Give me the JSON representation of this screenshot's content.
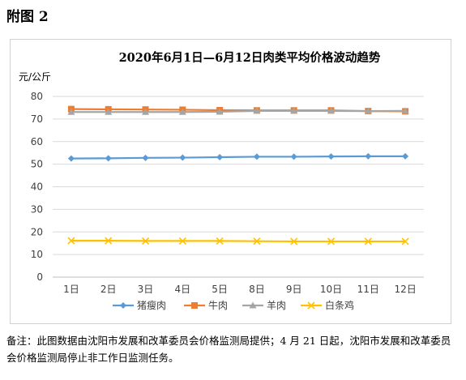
{
  "figure_label": "附图 2",
  "note": "备注：此图数据由沈阳市发展和改革委员会价格监测局提供；4 月 21 日起，沈阳市发展和改革委员会价格监测局停止非工作日监测任务。",
  "chart_data": {
    "type": "line",
    "title": "2020年6月1日—6月12日肉类平均价格波动趋势",
    "ylabel": "元/公斤",
    "xlabel": "",
    "categories": [
      "1日",
      "2日",
      "3日",
      "4日",
      "5日",
      "8日",
      "9日",
      "10日",
      "11日",
      "12日"
    ],
    "ylim": [
      0,
      80
    ],
    "yticks": [
      0,
      10,
      20,
      30,
      40,
      50,
      60,
      70,
      80
    ],
    "grid": true,
    "legend_position": "bottom",
    "series": [
      {
        "name": "猪瘦肉",
        "color": "#5b9bd5",
        "marker": "diamond",
        "values": [
          52.5,
          52.6,
          52.8,
          52.9,
          53.1,
          53.3,
          53.3,
          53.4,
          53.5,
          53.5
        ]
      },
      {
        "name": "牛肉",
        "color": "#ed7d31",
        "marker": "square",
        "values": [
          74.4,
          74.3,
          74.2,
          74.1,
          73.9,
          73.8,
          73.8,
          73.8,
          73.5,
          73.4
        ]
      },
      {
        "name": "羊肉",
        "color": "#a5a5a5",
        "marker": "triangle",
        "values": [
          73.1,
          73.1,
          73.1,
          73.1,
          73.2,
          73.6,
          73.6,
          73.6,
          73.5,
          73.6
        ]
      },
      {
        "name": "白条鸡",
        "color": "#ffc000",
        "marker": "x",
        "values": [
          16.1,
          16.1,
          16.0,
          16.0,
          16.0,
          15.9,
          15.8,
          15.8,
          15.8,
          15.8
        ]
      }
    ]
  }
}
